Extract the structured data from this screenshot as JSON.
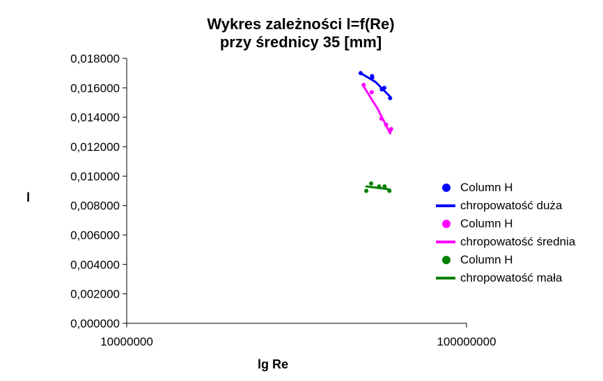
{
  "chart_data": {
    "type": "scatter",
    "title_line1": "Wykres zależności l=f(Re)",
    "title_line2": "przy średnicy 35 [mm]",
    "xlabel": "lg Re",
    "ylabel": "l",
    "x_scale": "log",
    "xlim": [
      10000000,
      100000000
    ],
    "ylim": [
      0,
      0.018
    ],
    "x_ticks": [
      "10000000",
      "100000000"
    ],
    "y_ticks": [
      "0,000000",
      "0,002000",
      "0,004000",
      "0,006000",
      "0,008000",
      "0,010000",
      "0,012000",
      "0,014000",
      "0,016000",
      "0,018000"
    ],
    "grid": false,
    "legend_position": "right",
    "series": [
      {
        "name": "Column H",
        "trendline_name": "chropowatość duża",
        "color": "#0000ff",
        "points": [
          [
            48800000,
            0.017
          ],
          [
            52700000,
            0.0168
          ],
          [
            52800000,
            0.0167
          ],
          [
            56300000,
            0.0159
          ],
          [
            57300000,
            0.016
          ],
          [
            59600000,
            0.0153
          ]
        ],
        "trend": [
          [
            48800000,
            0.017
          ],
          [
            54000000,
            0.0164
          ],
          [
            59600000,
            0.0154
          ]
        ]
      },
      {
        "name": "Column H",
        "trendline_name": "chropowatość średnia",
        "color": "#ff00ff",
        "points": [
          [
            49800000,
            0.0162
          ],
          [
            52600000,
            0.0157
          ],
          [
            56200000,
            0.0139
          ],
          [
            58000000,
            0.0135
          ],
          [
            59600000,
            0.0131
          ],
          [
            60000000,
            0.0132
          ]
        ],
        "trend": [
          [
            49800000,
            0.0161
          ],
          [
            54700000,
            0.0146
          ],
          [
            59600000,
            0.0129
          ]
        ]
      },
      {
        "name": "Column H",
        "trendline_name": "chropowatość mała",
        "color": "#008000",
        "points": [
          [
            50700000,
            0.009
          ],
          [
            52400000,
            0.0095
          ],
          [
            55300000,
            0.0093
          ],
          [
            57400000,
            0.0093
          ],
          [
            59300000,
            0.009
          ]
        ],
        "trend": [
          [
            50700000,
            0.0093
          ],
          [
            59300000,
            0.0091
          ]
        ]
      }
    ]
  }
}
